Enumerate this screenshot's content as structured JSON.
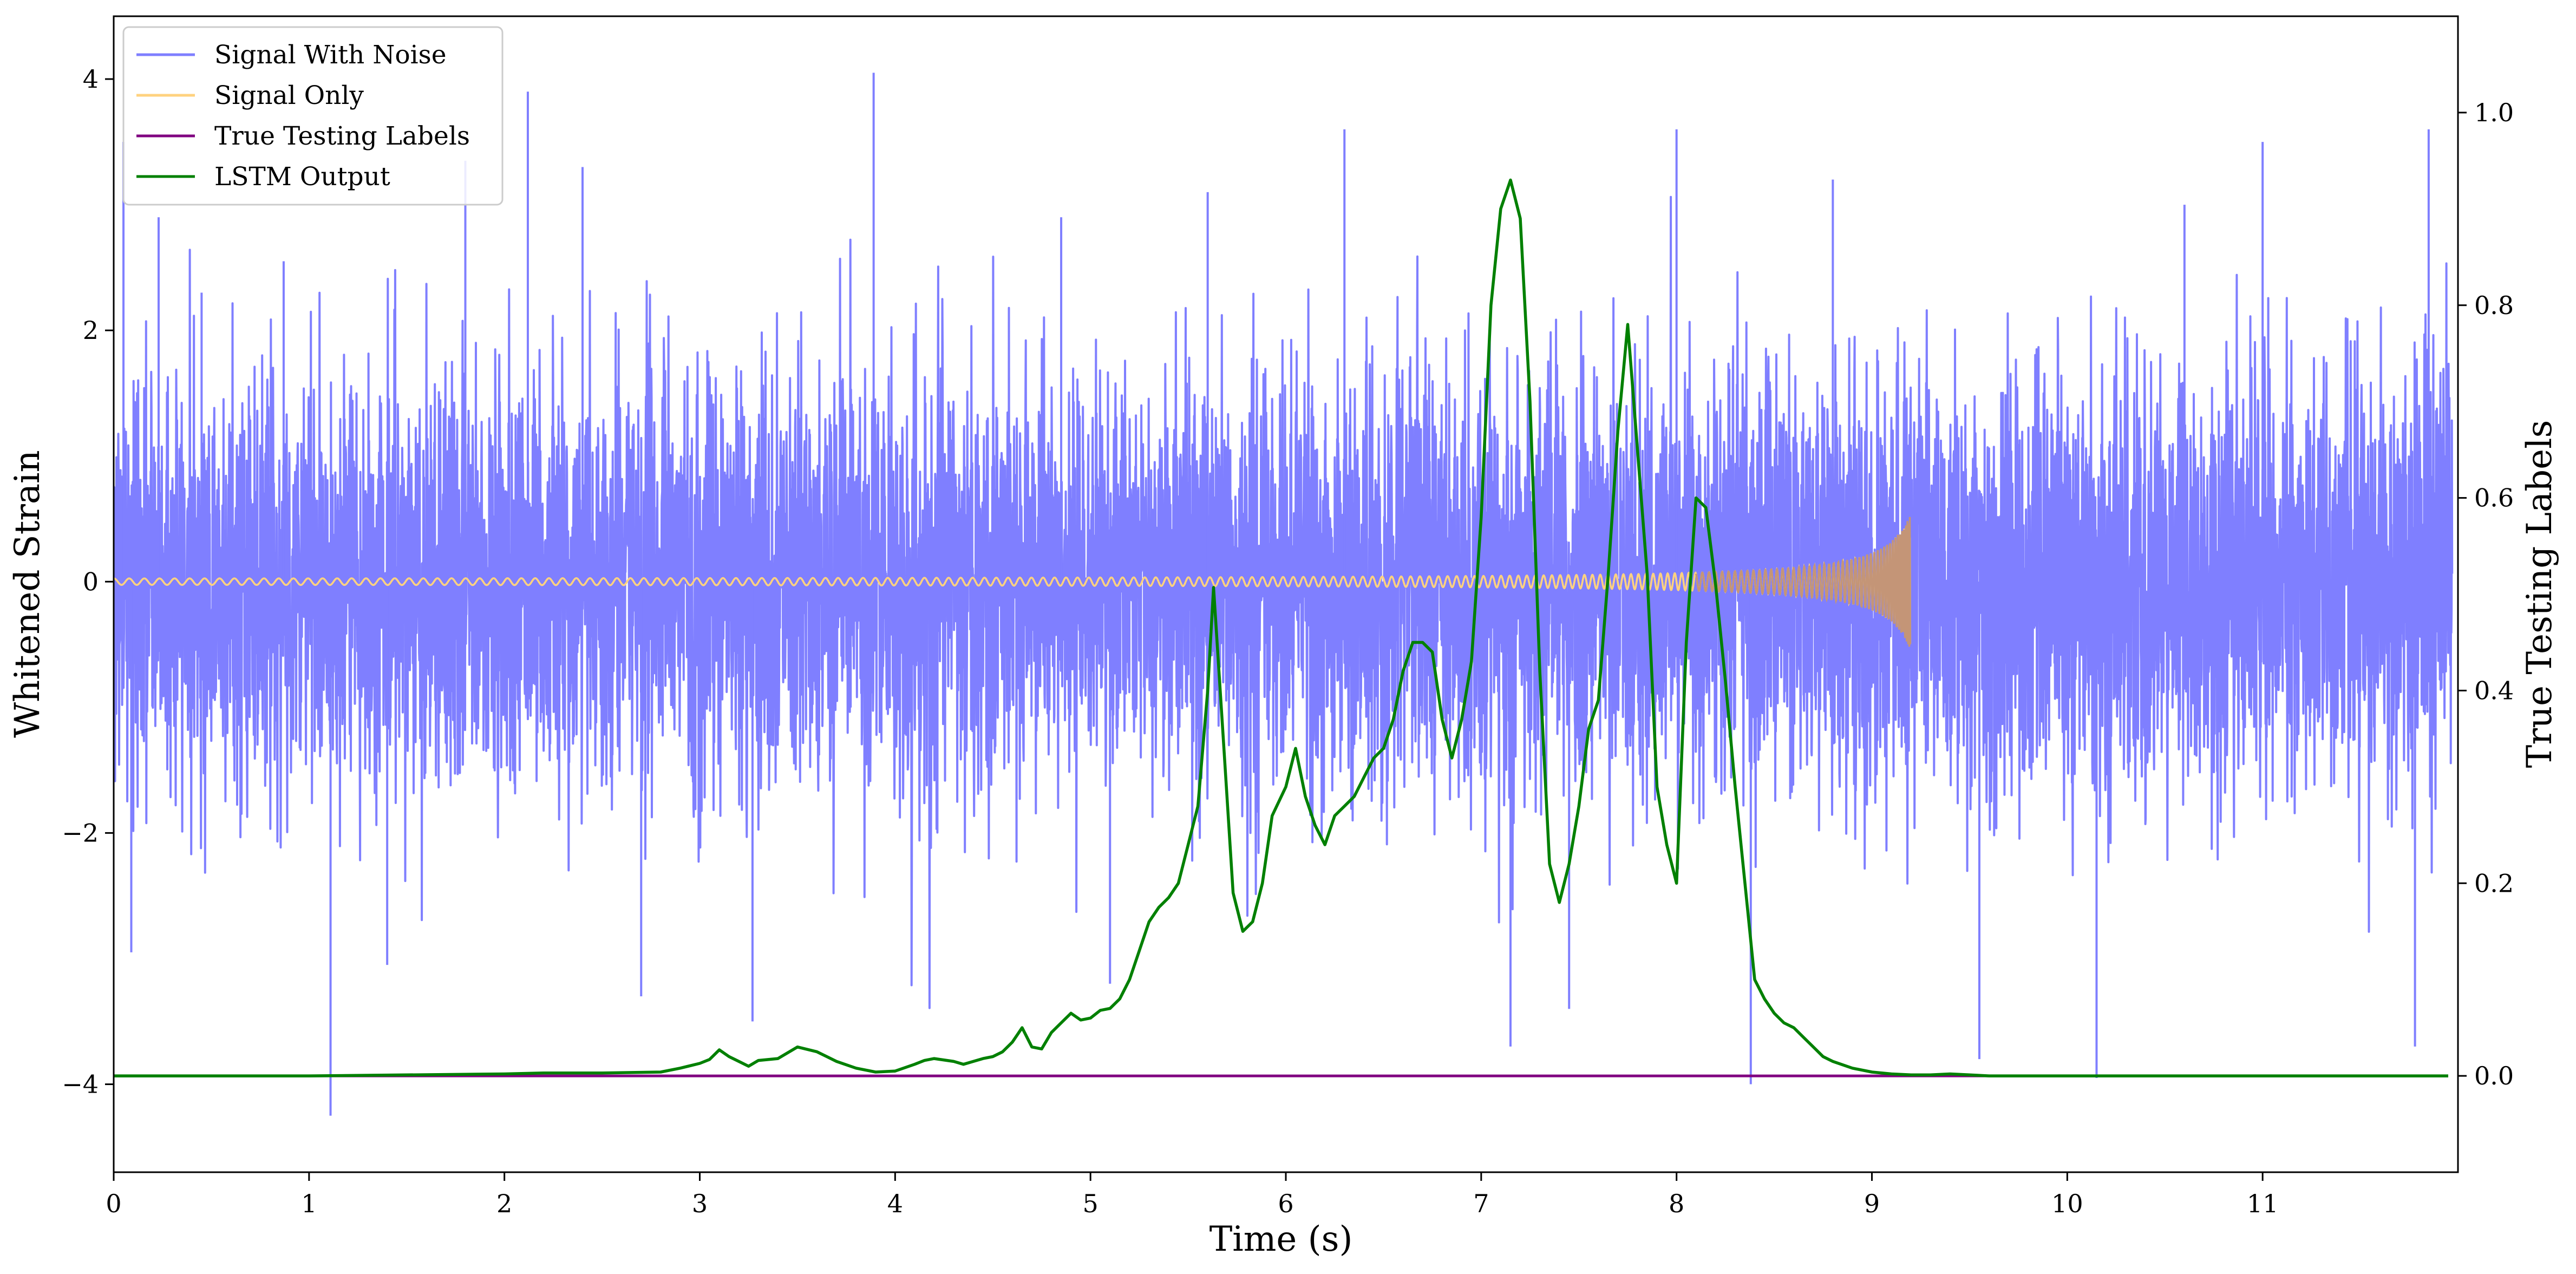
{
  "chart_data": {
    "type": "line",
    "xlabel": "Time (s)",
    "ylabel_left": "Whitened Strain",
    "ylabel_right": "True Testing Labels",
    "xlim": [
      0,
      12
    ],
    "ylim_left": [
      -4.7,
      4.5
    ],
    "ylim_right": [
      -0.1,
      1.1
    ],
    "x_ticks": [
      0,
      1,
      2,
      3,
      4,
      5,
      6,
      7,
      8,
      9,
      10,
      11
    ],
    "y_ticks_left": [
      -4,
      -2,
      0,
      2,
      4
    ],
    "y_ticks_right": [
      0.0,
      0.2,
      0.4,
      0.6,
      0.8,
      1.0
    ],
    "grid": false,
    "legend": {
      "placement": "top-left",
      "entries": [
        "Signal With Noise",
        "Signal Only",
        "True Testing Labels",
        "LSTM Output"
      ]
    },
    "colors": {
      "signal_with_noise": "#7f7fff",
      "signal_only": "#ffd27f",
      "signal_burst": "#c49577",
      "true_testing_labels": "#800080",
      "lstm_output": "#008000"
    },
    "series": [
      {
        "name": "Signal With Noise",
        "axis": "left",
        "description_values": {
          "band_core": [
            -1.4,
            1.5
          ],
          "extremes": [
            -4.25,
            4.05
          ]
        },
        "spikes": [
          {
            "x": 0.05,
            "y": 3.5
          },
          {
            "x": 0.09,
            "y": -2.95
          },
          {
            "x": 0.23,
            "y": 2.9
          },
          {
            "x": 0.45,
            "y": 2.3
          },
          {
            "x": 0.87,
            "y": 2.55
          },
          {
            "x": 1.11,
            "y": -4.25
          },
          {
            "x": 1.4,
            "y": -3.05
          },
          {
            "x": 1.8,
            "y": 3.35
          },
          {
            "x": 2.12,
            "y": 3.9
          },
          {
            "x": 2.4,
            "y": 3.3
          },
          {
            "x": 2.7,
            "y": -3.3
          },
          {
            "x": 3.27,
            "y": -3.5
          },
          {
            "x": 3.89,
            "y": 4.05
          },
          {
            "x": 4.85,
            "y": 2.9
          },
          {
            "x": 5.1,
            "y": -3.2
          },
          {
            "x": 5.6,
            "y": 3.1
          },
          {
            "x": 6.3,
            "y": 3.6
          },
          {
            "x": 7.15,
            "y": -3.7
          },
          {
            "x": 7.45,
            "y": -3.4
          },
          {
            "x": 8.0,
            "y": 3.6
          },
          {
            "x": 8.38,
            "y": -4.0
          },
          {
            "x": 8.8,
            "y": 3.2
          },
          {
            "x": 9.55,
            "y": -3.8
          },
          {
            "x": 10.15,
            "y": -3.95
          },
          {
            "x": 10.6,
            "y": 3.0
          },
          {
            "x": 11.0,
            "y": 3.5
          },
          {
            "x": 11.85,
            "y": 3.6
          },
          {
            "x": 11.78,
            "y": -3.7
          }
        ]
      },
      {
        "name": "Signal Only",
        "axis": "left",
        "chirp": {
          "start_x": 0,
          "end_x": 9.2,
          "amplitude_start": 0.02,
          "amplitude_end": 0.55
        }
      },
      {
        "name": "True Testing Labels",
        "axis": "right",
        "x": [
          0,
          11.95
        ],
        "y": [
          0.0,
          0.0
        ]
      },
      {
        "name": "LSTM Output",
        "axis": "right",
        "x": [
          0.0,
          1.0,
          2.0,
          2.2,
          2.5,
          2.8,
          2.9,
          3.0,
          3.05,
          3.1,
          3.15,
          3.2,
          3.25,
          3.3,
          3.4,
          3.5,
          3.6,
          3.7,
          3.8,
          3.9,
          4.0,
          4.1,
          4.15,
          4.2,
          4.3,
          4.35,
          4.4,
          4.45,
          4.5,
          4.55,
          4.6,
          4.65,
          4.7,
          4.75,
          4.8,
          4.85,
          4.9,
          4.95,
          5.0,
          5.05,
          5.1,
          5.15,
          5.2,
          5.25,
          5.3,
          5.35,
          5.4,
          5.45,
          5.5,
          5.55,
          5.6,
          5.63,
          5.68,
          5.73,
          5.78,
          5.83,
          5.88,
          5.93,
          6.0,
          6.05,
          6.1,
          6.15,
          6.2,
          6.25,
          6.3,
          6.35,
          6.4,
          6.45,
          6.5,
          6.55,
          6.6,
          6.65,
          6.7,
          6.75,
          6.8,
          6.85,
          6.9,
          6.95,
          7.0,
          7.05,
          7.1,
          7.15,
          7.2,
          7.25,
          7.3,
          7.35,
          7.4,
          7.45,
          7.5,
          7.55,
          7.6,
          7.65,
          7.7,
          7.75,
          7.8,
          7.85,
          7.9,
          7.95,
          8.0,
          8.05,
          8.1,
          8.15,
          8.2,
          8.25,
          8.3,
          8.35,
          8.4,
          8.45,
          8.5,
          8.55,
          8.6,
          8.65,
          8.7,
          8.75,
          8.8,
          8.9,
          9.0,
          9.1,
          9.2,
          9.3,
          9.4,
          9.5,
          9.6,
          9.8,
          10.0,
          10.5,
          11.0,
          11.95
        ],
        "y": [
          0.0,
          0.0,
          0.002,
          0.003,
          0.003,
          0.004,
          0.008,
          0.013,
          0.017,
          0.027,
          0.02,
          0.015,
          0.01,
          0.016,
          0.018,
          0.03,
          0.025,
          0.015,
          0.008,
          0.004,
          0.005,
          0.012,
          0.016,
          0.018,
          0.015,
          0.012,
          0.015,
          0.018,
          0.02,
          0.025,
          0.035,
          0.05,
          0.03,
          0.028,
          0.045,
          0.055,
          0.065,
          0.058,
          0.06,
          0.068,
          0.07,
          0.08,
          0.1,
          0.13,
          0.16,
          0.175,
          0.185,
          0.2,
          0.24,
          0.28,
          0.4,
          0.507,
          0.35,
          0.19,
          0.15,
          0.16,
          0.2,
          0.27,
          0.3,
          0.34,
          0.29,
          0.26,
          0.24,
          0.27,
          0.28,
          0.29,
          0.31,
          0.33,
          0.34,
          0.37,
          0.42,
          0.45,
          0.45,
          0.44,
          0.37,
          0.33,
          0.37,
          0.43,
          0.58,
          0.8,
          0.9,
          0.93,
          0.89,
          0.7,
          0.42,
          0.22,
          0.18,
          0.22,
          0.28,
          0.36,
          0.39,
          0.52,
          0.67,
          0.78,
          0.65,
          0.52,
          0.3,
          0.24,
          0.2,
          0.45,
          0.6,
          0.59,
          0.51,
          0.41,
          0.3,
          0.2,
          0.1,
          0.08,
          0.065,
          0.055,
          0.05,
          0.04,
          0.03,
          0.02,
          0.015,
          0.008,
          0.004,
          0.002,
          0.001,
          0.001,
          0.002,
          0.001,
          0.0,
          0.0,
          0.0,
          0.0,
          0.0,
          0.0
        ]
      }
    ]
  }
}
